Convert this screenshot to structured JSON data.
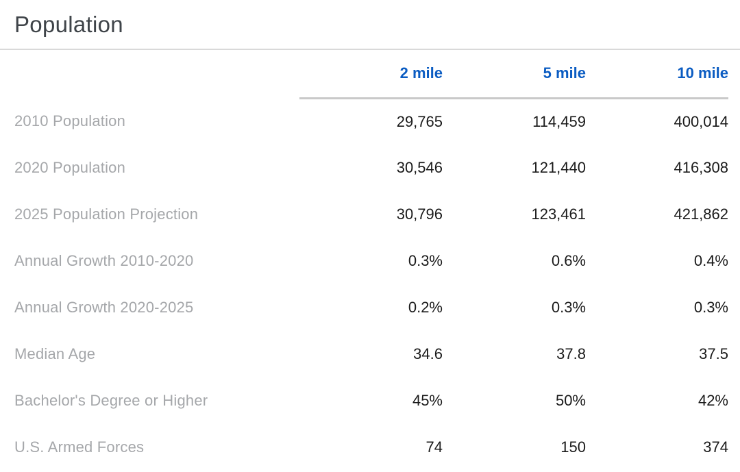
{
  "section": {
    "title": "Population"
  },
  "colors": {
    "header_blue": "#0b5cc2",
    "label_gray": "#a5a7aa",
    "value_black": "#1a1a1a",
    "title_gray": "#3f4449",
    "title_divider": "#d9d9d9",
    "header_underline": "#c9c9c9",
    "page_bg": "#ffffff"
  },
  "chart_data": {
    "type": "table",
    "title": "Population",
    "columns": [
      "2 mile",
      "5 mile",
      "10 mile"
    ],
    "rows": [
      {
        "label": "2010 Population",
        "values": [
          "29,765",
          "114,459",
          "400,014"
        ]
      },
      {
        "label": "2020 Population",
        "values": [
          "30,546",
          "121,440",
          "416,308"
        ]
      },
      {
        "label": "2025 Population Projection",
        "values": [
          "30,796",
          "123,461",
          "421,862"
        ]
      },
      {
        "label": "Annual Growth 2010-2020",
        "values": [
          "0.3%",
          "0.6%",
          "0.4%"
        ]
      },
      {
        "label": "Annual Growth 2020-2025",
        "values": [
          "0.2%",
          "0.3%",
          "0.3%"
        ]
      },
      {
        "label": "Median Age",
        "values": [
          "34.6",
          "37.8",
          "37.5"
        ]
      },
      {
        "label": "Bachelor's Degree or Higher",
        "values": [
          "45%",
          "50%",
          "42%"
        ]
      },
      {
        "label": "U.S. Armed Forces",
        "values": [
          "74",
          "150",
          "374"
        ]
      }
    ]
  }
}
